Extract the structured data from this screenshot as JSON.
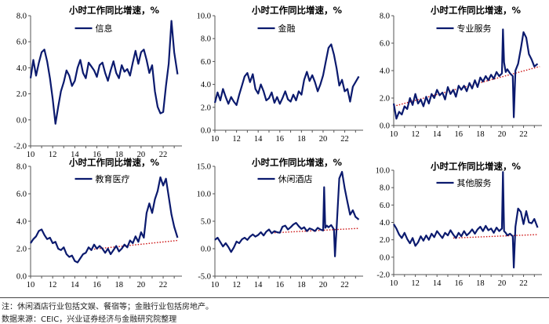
{
  "chart_data": [
    {
      "type": "line",
      "title": "小时工作同比增速，%",
      "legend": "信息",
      "ylim": [
        -2,
        8
      ],
      "yticks": [
        "8.0",
        "6.0",
        "4.0",
        "2.0",
        "0.0",
        "-2.0"
      ],
      "xlim": [
        10,
        23.7
      ],
      "xticks": [
        "10",
        "12",
        "14",
        "16",
        "18",
        "20",
        "22"
      ],
      "series_color": "#0b1a6e",
      "x": [
        10,
        10.25,
        10.5,
        10.75,
        11,
        11.25,
        11.5,
        11.75,
        12,
        12.25,
        12.5,
        12.75,
        13,
        13.25,
        13.5,
        13.75,
        14,
        14.25,
        14.5,
        14.75,
        15,
        15.25,
        15.5,
        15.75,
        16,
        16.25,
        16.5,
        16.75,
        17,
        17.25,
        17.5,
        17.75,
        18,
        18.25,
        18.5,
        18.75,
        19,
        19.25,
        19.5,
        19.75,
        20,
        20.25,
        20.5,
        20.75,
        21,
        21.25,
        21.5,
        21.75,
        22,
        22.25,
        22.5,
        22.75,
        23,
        23.3
      ],
      "values": [
        3.2,
        4.6,
        3.4,
        4.4,
        5.2,
        5.4,
        4.5,
        3.2,
        1.6,
        -0.3,
        1.0,
        2.2,
        2.9,
        3.8,
        3.4,
        2.6,
        3.0,
        4.0,
        4.6,
        3.6,
        3.2,
        4.4,
        4.1,
        3.8,
        3.3,
        4.2,
        4.4,
        3.6,
        3.0,
        3.8,
        4.5,
        3.6,
        3.2,
        4.2,
        3.7,
        3.9,
        3.4,
        4.4,
        5.3,
        4.3,
        5.2,
        5.4,
        4.6,
        3.6,
        4.2,
        2.2,
        1.0,
        0.5,
        0.6,
        2.6,
        4.3,
        7.6,
        5.2,
        3.5
      ]
    },
    {
      "type": "line",
      "title": "小时工作同比增速，%",
      "legend": "金融",
      "ylim": [
        0,
        10
      ],
      "yticks": [
        "10.0",
        "8.0",
        "6.0",
        "4.0",
        "2.0",
        "0.0"
      ],
      "xlim": [
        10,
        23.7
      ],
      "xticks": [
        "10",
        "12",
        "14",
        "16",
        "18",
        "20",
        "22"
      ],
      "series_color": "#0b1a6e",
      "x": [
        10,
        10.25,
        10.5,
        10.75,
        11,
        11.25,
        11.5,
        11.75,
        12,
        12.25,
        12.5,
        12.75,
        13,
        13.25,
        13.5,
        13.75,
        14,
        14.25,
        14.5,
        14.75,
        15,
        15.25,
        15.5,
        15.75,
        16,
        16.25,
        16.5,
        16.75,
        17,
        17.25,
        17.5,
        17.75,
        18,
        18.25,
        18.5,
        18.75,
        19,
        19.25,
        19.5,
        19.75,
        20,
        20.25,
        20.5,
        20.75,
        21,
        21.25,
        21.5,
        21.75,
        22,
        22.25,
        22.5,
        22.75,
        23,
        23.3
      ],
      "values": [
        2.4,
        3.3,
        2.6,
        3.6,
        2.9,
        2.3,
        2.9,
        2.5,
        2.2,
        3.1,
        3.9,
        4.7,
        5.0,
        4.2,
        4.9,
        3.6,
        3.2,
        4.0,
        3.4,
        2.6,
        2.8,
        3.3,
        2.4,
        2.9,
        2.3,
        2.8,
        3.4,
        2.7,
        2.5,
        3.1,
        2.6,
        3.4,
        3.1,
        4.4,
        5.1,
        4.3,
        4.8,
        4.2,
        3.4,
        4.0,
        4.8,
        6.0,
        7.2,
        7.5,
        6.6,
        5.4,
        3.9,
        4.4,
        3.4,
        3.6,
        2.5,
        3.8,
        4.2,
        4.7
      ]
    },
    {
      "type": "line",
      "title": "小时工作同比增速，%",
      "legend": "专业服务",
      "ylim": [
        0,
        8
      ],
      "yticks": [
        "8.0",
        "6.0",
        "4.0",
        "2.0",
        "0.0"
      ],
      "xlim": [
        10,
        23.7
      ],
      "xticks": [
        "10",
        "12",
        "14",
        "16",
        "18",
        "20",
        "22"
      ],
      "series_color": "#0b1a6e",
      "x": [
        10,
        10.25,
        10.5,
        10.75,
        11,
        11.25,
        11.5,
        11.75,
        12,
        12.25,
        12.5,
        12.75,
        13,
        13.25,
        13.5,
        13.75,
        14,
        14.25,
        14.5,
        14.75,
        15,
        15.25,
        15.5,
        15.75,
        16,
        16.25,
        16.5,
        16.75,
        17,
        17.25,
        17.5,
        17.75,
        18,
        18.25,
        18.5,
        18.75,
        19,
        19.25,
        19.5,
        19.75,
        20,
        20.1,
        20.2,
        20.35,
        20.5,
        20.75,
        21,
        21.1,
        21.25,
        21.5,
        21.75,
        22,
        22.25,
        22.5,
        22.75,
        23,
        23.3
      ],
      "values": [
        1.6,
        0.5,
        1.0,
        0.8,
        1.4,
        1.2,
        2.0,
        1.5,
        2.3,
        1.6,
        1.9,
        1.4,
        2.1,
        1.6,
        2.3,
        2.0,
        2.6,
        2.2,
        2.4,
        1.9,
        2.8,
        2.3,
        2.6,
        2.1,
        2.9,
        2.6,
        2.9,
        2.5,
        3.1,
        2.7,
        3.3,
        2.8,
        3.5,
        3.2,
        3.6,
        3.3,
        3.7,
        3.4,
        3.9,
        3.6,
        3.8,
        7.0,
        4.6,
        3.9,
        4.1,
        3.8,
        3.6,
        0.6,
        4.0,
        4.5,
        5.6,
        6.8,
        6.4,
        5.2,
        4.8,
        4.3,
        4.5
      ],
      "trend": {
        "x": [
          10,
          23.5
        ],
        "values": [
          1.4,
          4.3
        ],
        "color": "#cc1111"
      }
    },
    {
      "type": "line",
      "title": "小时工作同比增速，%",
      "legend": "教育医疗",
      "ylim": [
        0,
        8
      ],
      "yticks": [
        "8.0",
        "6.0",
        "4.0",
        "2.0",
        "0.0"
      ],
      "xlim": [
        10,
        23.7
      ],
      "xticks": [
        "10",
        "12",
        "14",
        "16",
        "18",
        "20",
        "22"
      ],
      "series_color": "#0b1a6e",
      "x": [
        10,
        10.25,
        10.5,
        10.75,
        11,
        11.25,
        11.5,
        11.75,
        12,
        12.25,
        12.5,
        12.75,
        13,
        13.25,
        13.5,
        13.75,
        14,
        14.25,
        14.5,
        14.75,
        15,
        15.25,
        15.5,
        15.75,
        16,
        16.25,
        16.5,
        16.75,
        17,
        17.25,
        17.5,
        17.75,
        18,
        18.25,
        18.5,
        18.75,
        19,
        19.25,
        19.5,
        19.75,
        20,
        20.25,
        20.5,
        20.75,
        21,
        21.25,
        21.5,
        21.75,
        22,
        22.25,
        22.5,
        22.75,
        23,
        23.3
      ],
      "values": [
        2.4,
        2.7,
        2.9,
        3.3,
        3.4,
        3.0,
        2.7,
        2.8,
        2.4,
        2.5,
        2.0,
        1.9,
        2.1,
        1.6,
        1.4,
        1.5,
        1.1,
        1.0,
        1.3,
        1.6,
        1.7,
        2.1,
        1.9,
        2.3,
        2.0,
        2.2,
        2.0,
        1.7,
        2.0,
        1.6,
        1.9,
        2.2,
        1.8,
        2.0,
        2.3,
        2.1,
        2.6,
        2.4,
        2.9,
        2.5,
        3.2,
        2.8,
        4.6,
        5.3,
        4.6,
        5.6,
        6.2,
        7.2,
        6.6,
        7.1,
        5.8,
        4.5,
        3.6,
        2.8
      ],
      "trend": {
        "x": [
          15.5,
          23.3
        ],
        "values": [
          1.95,
          2.6
        ],
        "color": "#cc1111"
      }
    },
    {
      "type": "line",
      "title": "小时工作同比增速，%",
      "legend": "休闲酒店",
      "ylim": [
        -5,
        15
      ],
      "yticks": [
        "15.0",
        "10.0",
        "5.0",
        "0.0",
        "-5.0"
      ],
      "xlim": [
        10,
        23.7
      ],
      "xticks": [
        "10",
        "12",
        "14",
        "16",
        "18",
        "20",
        "22"
      ],
      "series_color": "#0b1a6e",
      "x": [
        10,
        10.25,
        10.5,
        10.75,
        11,
        11.25,
        11.5,
        11.75,
        12,
        12.25,
        12.5,
        12.75,
        13,
        13.25,
        13.5,
        13.75,
        14,
        14.25,
        14.5,
        14.75,
        15,
        15.25,
        15.5,
        15.75,
        16,
        16.25,
        16.5,
        16.75,
        17,
        17.25,
        17.5,
        17.75,
        18,
        18.25,
        18.5,
        18.75,
        19,
        19.25,
        19.5,
        19.75,
        20,
        20.1,
        20.2,
        20.35,
        20.5,
        20.75,
        21,
        21.1,
        21.25,
        21.5,
        21.75,
        22,
        22.25,
        22.5,
        22.75,
        23,
        23.3
      ],
      "values": [
        1.6,
        2.0,
        1.2,
        0.4,
        1.0,
        0.3,
        -0.6,
        0.2,
        1.3,
        1.0,
        1.7,
        2.0,
        1.6,
        2.2,
        2.6,
        2.2,
        2.5,
        3.0,
        2.4,
        3.1,
        3.5,
        2.8,
        3.2,
        3.0,
        2.9,
        4.0,
        4.2,
        3.5,
        3.9,
        4.4,
        4.7,
        4.1,
        3.6,
        3.9,
        3.2,
        3.7,
        3.5,
        3.2,
        3.8,
        3.5,
        3.3,
        11.2,
        3.8,
        4.2,
        3.9,
        4.3,
        3.5,
        -1.4,
        3.8,
        12.8,
        14.0,
        11.0,
        8.5,
        6.2,
        7.0,
        5.8,
        5.3
      ],
      "trend": {
        "x": [
          15.5,
          23.3
        ],
        "values": [
          2.9,
          3.7
        ],
        "color": "#cc1111"
      }
    },
    {
      "type": "line",
      "title": "小时工作同比增速，%",
      "legend": "其他服务",
      "ylim": [
        -2,
        10
      ],
      "yticks": [
        "10.0",
        "8.0",
        "6.0",
        "4.0",
        "2.0",
        "0.0",
        "-2.0"
      ],
      "xlim": [
        10,
        23.7
      ],
      "xticks": [
        "10",
        "12",
        "14",
        "16",
        "18",
        "20",
        "22"
      ],
      "series_color": "#0b1a6e",
      "x": [
        10,
        10.25,
        10.5,
        10.75,
        11,
        11.25,
        11.5,
        11.75,
        12,
        12.25,
        12.5,
        12.75,
        13,
        13.25,
        13.5,
        13.75,
        14,
        14.25,
        14.5,
        14.75,
        15,
        15.25,
        15.5,
        15.75,
        16,
        16.25,
        16.5,
        16.75,
        17,
        17.25,
        17.5,
        17.75,
        18,
        18.25,
        18.5,
        18.75,
        19,
        19.25,
        19.5,
        19.75,
        20,
        20.1,
        20.2,
        20.35,
        20.5,
        20.75,
        21,
        21.1,
        21.25,
        21.5,
        21.75,
        22,
        22.25,
        22.5,
        22.75,
        23,
        23.3
      ],
      "values": [
        3.8,
        3.3,
        2.6,
        2.2,
        2.8,
        2.1,
        1.6,
        2.2,
        1.3,
        1.7,
        2.4,
        1.9,
        2.5,
        2.0,
        2.7,
        2.3,
        3.0,
        2.6,
        2.2,
        2.8,
        2.5,
        3.1,
        2.6,
        2.2,
        2.8,
        2.4,
        3.0,
        2.5,
        2.8,
        3.2,
        2.7,
        3.2,
        3.5,
        3.0,
        3.6,
        3.1,
        3.3,
        2.8,
        3.4,
        3.0,
        3.3,
        9.8,
        3.0,
        2.8,
        2.5,
        2.7,
        2.4,
        -1.2,
        3.5,
        5.6,
        5.2,
        3.8,
        5.3,
        4.0,
        3.9,
        4.4,
        3.4
      ],
      "trend": {
        "x": [
          15.5,
          23.3
        ],
        "values": [
          2.2,
          2.6
        ],
        "color": "#cc1111"
      }
    }
  ],
  "notes": {
    "line1": "注：休闲酒店行业包括文娱、餐宿等；金融行业包括房地产。",
    "line2": "数据来源：CEIC，兴业证券经济与金融研究院整理"
  }
}
